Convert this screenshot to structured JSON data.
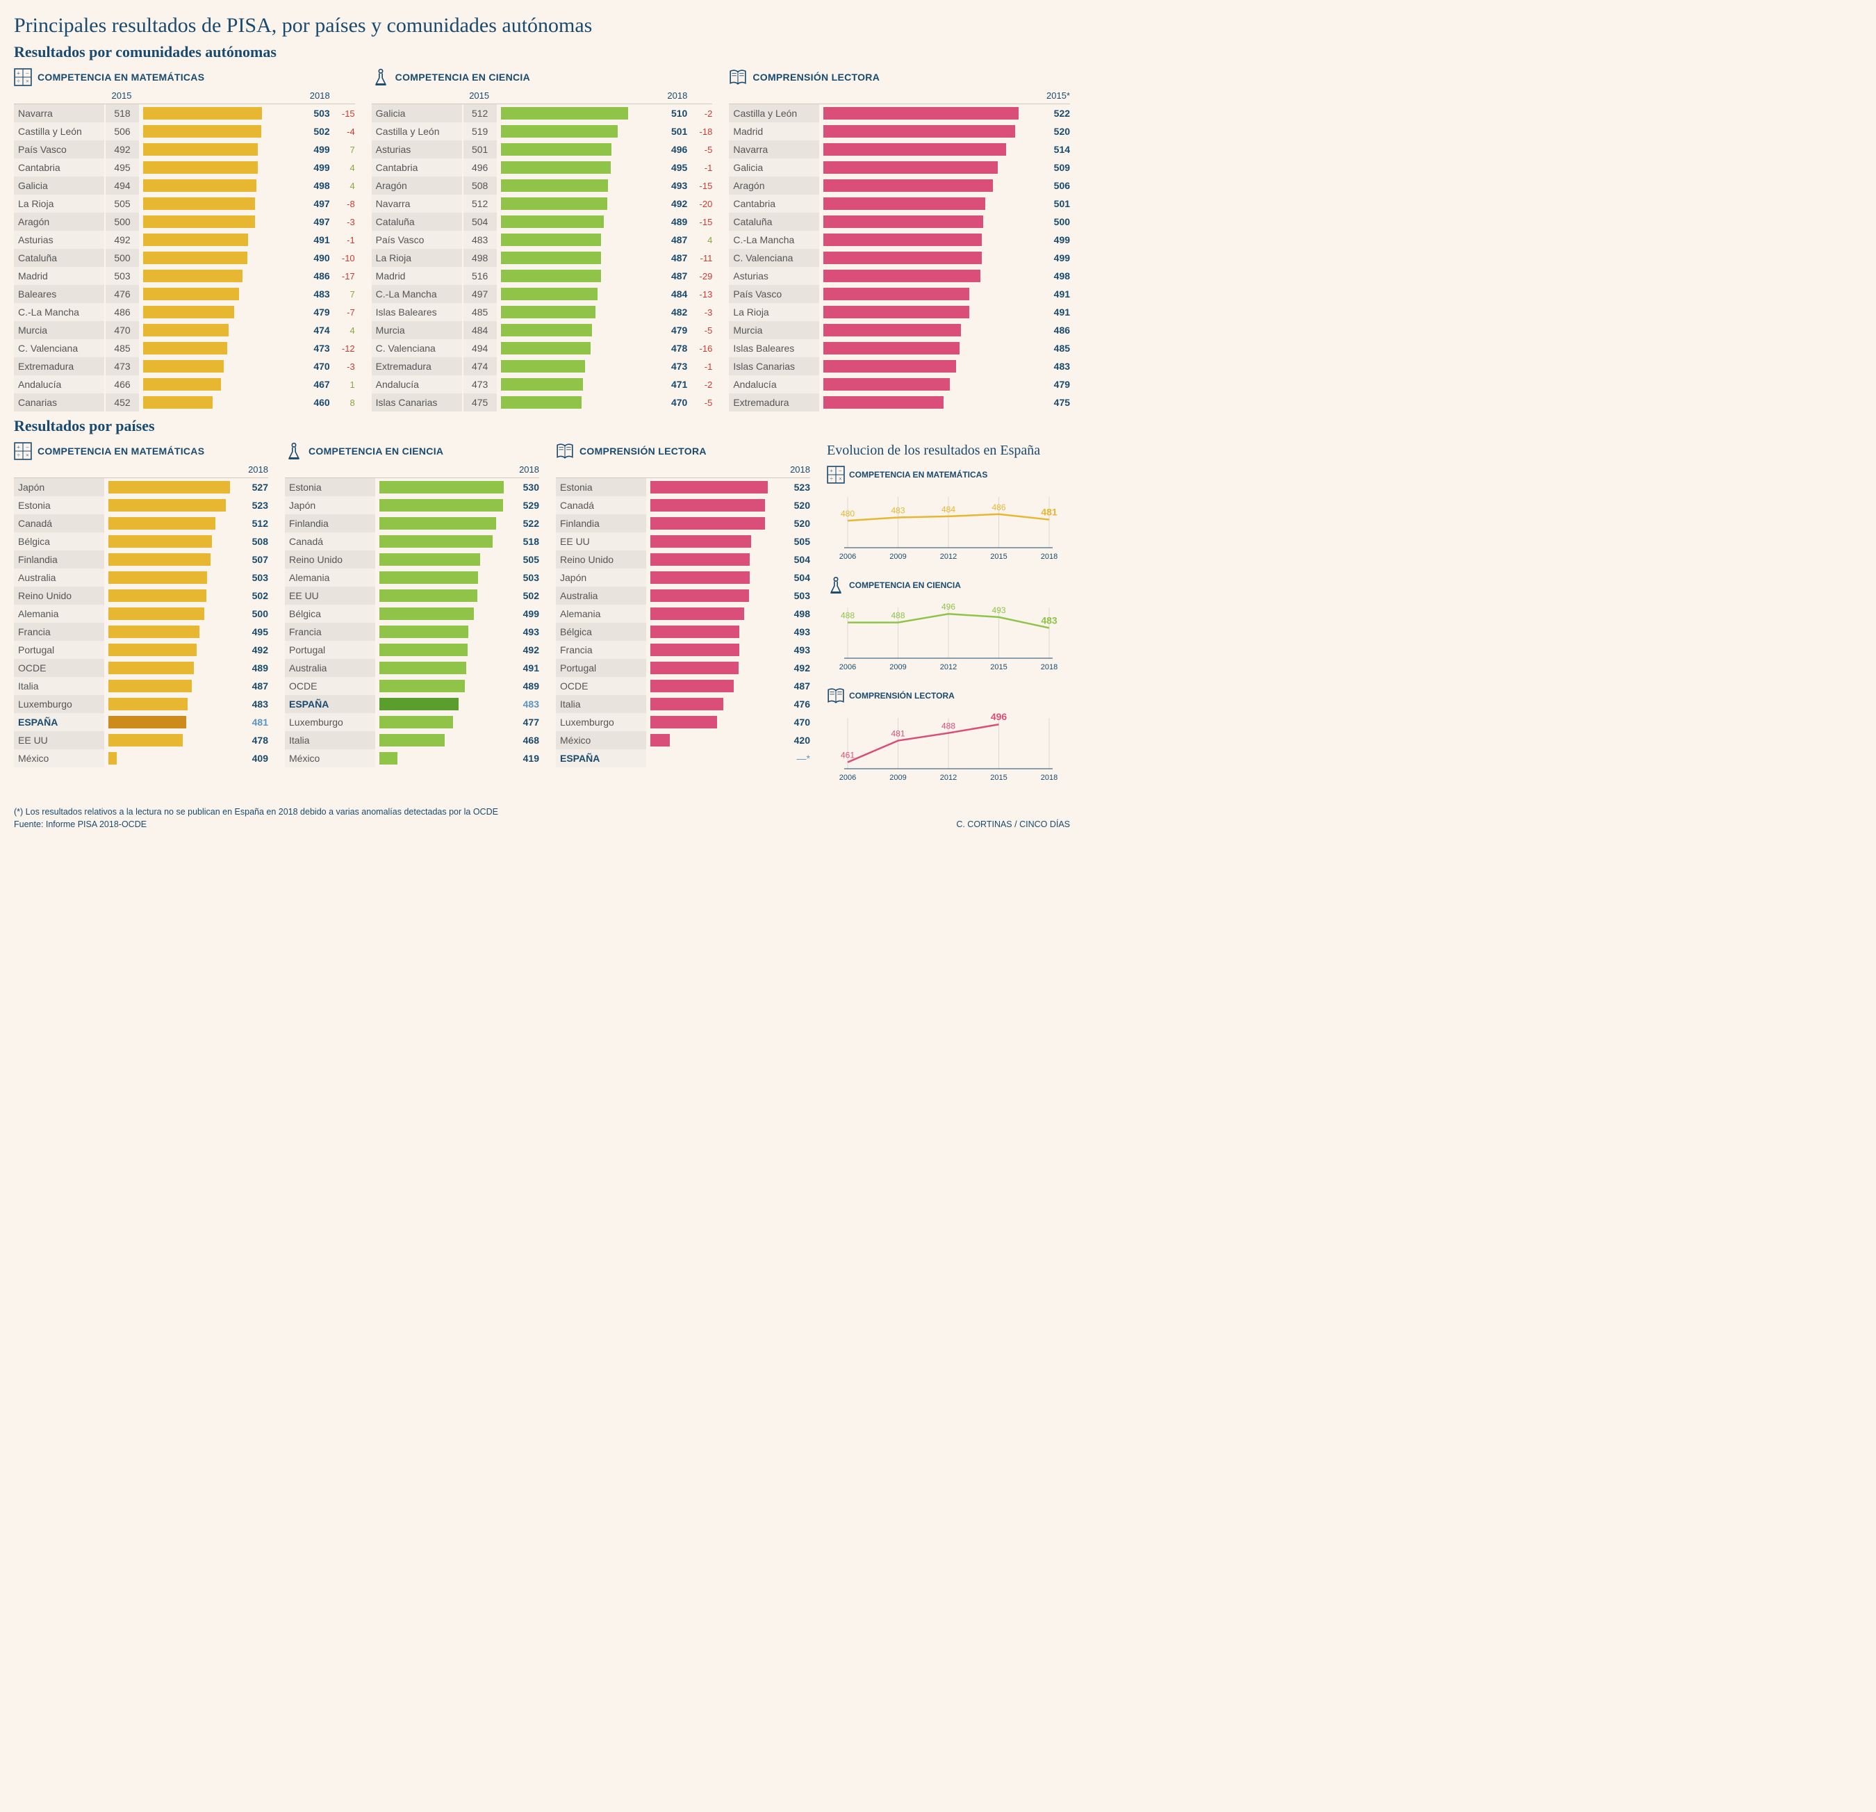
{
  "title": "Principales resultados de PISA, por países y comunidades autónomas",
  "subtitle_regions": "Resultados por comunidades autónomas",
  "subtitle_countries": "Resultados  por países",
  "col_2015": "2015",
  "col_2018": "2018",
  "col_2015star": "2015*",
  "footnote": "(*) Los resultados relativos a la lectura no se publican en España en 2018 debido a varias anomalías detectadas por la OCDE",
  "source": "Fuente: Informe PISA 2018-OCDE",
  "credit": "C. CORTINAS / CINCO DÍAS",
  "colors": {
    "math": "#e7b731",
    "math_dark": "#cc8b1a",
    "science": "#8fc449",
    "science_dark": "#5a9e2e",
    "reading": "#d94f7a",
    "neg": "#cf3b2e",
    "pos": "#8aa83c",
    "text": "#1a4a6e",
    "highlight_val": "#5a95c4"
  },
  "bar_domain": {
    "min": 400,
    "max": 535
  },
  "sections": {
    "math_title": "COMPETENCIA EN MATEMÁTICAS",
    "science_title": "COMPETENCIA EN CIENCIA",
    "reading_title": "COMPRENSIÓN LECTORA"
  },
  "regions_math": [
    {
      "name": "Navarra",
      "v2015": 518,
      "v2018": 503,
      "diff": -15
    },
    {
      "name": "Castilla y León",
      "v2015": 506,
      "v2018": 502,
      "diff": -4
    },
    {
      "name": "País Vasco",
      "v2015": 492,
      "v2018": 499,
      "diff": 7
    },
    {
      "name": "Cantabria",
      "v2015": 495,
      "v2018": 499,
      "diff": 4
    },
    {
      "name": "Galicia",
      "v2015": 494,
      "v2018": 498,
      "diff": 4
    },
    {
      "name": "La Rioja",
      "v2015": 505,
      "v2018": 497,
      "diff": -8
    },
    {
      "name": "Aragón",
      "v2015": 500,
      "v2018": 497,
      "diff": -3
    },
    {
      "name": "Asturias",
      "v2015": 492,
      "v2018": 491,
      "diff": -1
    },
    {
      "name": "Cataluña",
      "v2015": 500,
      "v2018": 490,
      "diff": -10
    },
    {
      "name": "Madrid",
      "v2015": 503,
      "v2018": 486,
      "diff": -17
    },
    {
      "name": "Baleares",
      "v2015": 476,
      "v2018": 483,
      "diff": 7
    },
    {
      "name": "C.-La Mancha",
      "v2015": 486,
      "v2018": 479,
      "diff": -7
    },
    {
      "name": "Murcia",
      "v2015": 470,
      "v2018": 474,
      "diff": 4
    },
    {
      "name": "C. Valenciana",
      "v2015": 485,
      "v2018": 473,
      "diff": -12
    },
    {
      "name": "Extremadura",
      "v2015": 473,
      "v2018": 470,
      "diff": -3
    },
    {
      "name": "Andalucía",
      "v2015": 466,
      "v2018": 467,
      "diff": 1
    },
    {
      "name": "Canarias",
      "v2015": 452,
      "v2018": 460,
      "diff": 8
    }
  ],
  "regions_science": [
    {
      "name": "Galicia",
      "v2015": 512,
      "v2018": 510,
      "diff": -2
    },
    {
      "name": "Castilla y León",
      "v2015": 519,
      "v2018": 501,
      "diff": -18
    },
    {
      "name": "Asturias",
      "v2015": 501,
      "v2018": 496,
      "diff": -5
    },
    {
      "name": "Cantabria",
      "v2015": 496,
      "v2018": 495,
      "diff": -1
    },
    {
      "name": "Aragón",
      "v2015": 508,
      "v2018": 493,
      "diff": -15
    },
    {
      "name": "Navarra",
      "v2015": 512,
      "v2018": 492,
      "diff": -20
    },
    {
      "name": "Cataluña",
      "v2015": 504,
      "v2018": 489,
      "diff": -15
    },
    {
      "name": "País Vasco",
      "v2015": 483,
      "v2018": 487,
      "diff": 4
    },
    {
      "name": "La Rioja",
      "v2015": 498,
      "v2018": 487,
      "diff": -11
    },
    {
      "name": "Madrid",
      "v2015": 516,
      "v2018": 487,
      "diff": -29
    },
    {
      "name": "C.-La Mancha",
      "v2015": 497,
      "v2018": 484,
      "diff": -13
    },
    {
      "name": "Islas Baleares",
      "v2015": 485,
      "v2018": 482,
      "diff": -3
    },
    {
      "name": "Murcia",
      "v2015": 484,
      "v2018": 479,
      "diff": -5
    },
    {
      "name": "C. Valenciana",
      "v2015": 494,
      "v2018": 478,
      "diff": -16
    },
    {
      "name": "Extremadura",
      "v2015": 474,
      "v2018": 473,
      "diff": -1
    },
    {
      "name": "Andalucía",
      "v2015": 473,
      "v2018": 471,
      "diff": -2
    },
    {
      "name": "Islas Canarias",
      "v2015": 475,
      "v2018": 470,
      "diff": -5
    }
  ],
  "regions_reading": [
    {
      "name": "Castilla y León",
      "v2018": 522
    },
    {
      "name": "Madrid",
      "v2018": 520
    },
    {
      "name": "Navarra",
      "v2018": 514
    },
    {
      "name": "Galicia",
      "v2018": 509
    },
    {
      "name": "Aragón",
      "v2018": 506
    },
    {
      "name": "Cantabria",
      "v2018": 501
    },
    {
      "name": "Cataluña",
      "v2018": 500
    },
    {
      "name": "C.-La Mancha",
      "v2018": 499
    },
    {
      "name": "C. Valenciana",
      "v2018": 499
    },
    {
      "name": "Asturias",
      "v2018": 498
    },
    {
      "name": "País Vasco",
      "v2018": 491
    },
    {
      "name": "La Rioja",
      "v2018": 491
    },
    {
      "name": "Murcia",
      "v2018": 486
    },
    {
      "name": "Islas Baleares",
      "v2018": 485
    },
    {
      "name": "Islas Canarias",
      "v2018": 483
    },
    {
      "name": "Andalucía",
      "v2018": 479
    },
    {
      "name": "Extremadura",
      "v2018": 475
    }
  ],
  "countries_math": [
    {
      "name": "Japón",
      "v2018": 527
    },
    {
      "name": "Estonia",
      "v2018": 523
    },
    {
      "name": "Canadá",
      "v2018": 512
    },
    {
      "name": "Bélgica",
      "v2018": 508
    },
    {
      "name": "Finlandia",
      "v2018": 507
    },
    {
      "name": "Australia",
      "v2018": 503
    },
    {
      "name": "Reino Unido",
      "v2018": 502
    },
    {
      "name": "Alemania",
      "v2018": 500
    },
    {
      "name": "Francia",
      "v2018": 495
    },
    {
      "name": "Portugal",
      "v2018": 492
    },
    {
      "name": "OCDE",
      "v2018": 489
    },
    {
      "name": "Italia",
      "v2018": 487
    },
    {
      "name": "Luxemburgo",
      "v2018": 483
    },
    {
      "name": "ESPAÑA",
      "v2018": 481,
      "highlight": true
    },
    {
      "name": "EE UU",
      "v2018": 478
    },
    {
      "name": "México",
      "v2018": 409
    }
  ],
  "countries_science": [
    {
      "name": "Estonia",
      "v2018": 530
    },
    {
      "name": "Japón",
      "v2018": 529
    },
    {
      "name": "Finlandia",
      "v2018": 522
    },
    {
      "name": "Canadá",
      "v2018": 518
    },
    {
      "name": "Reino Unido",
      "v2018": 505
    },
    {
      "name": "Alemania",
      "v2018": 503
    },
    {
      "name": "EE UU",
      "v2018": 502
    },
    {
      "name": "Bélgica",
      "v2018": 499
    },
    {
      "name": "Francia",
      "v2018": 493
    },
    {
      "name": "Portugal",
      "v2018": 492
    },
    {
      "name": "Australia",
      "v2018": 491
    },
    {
      "name": "OCDE",
      "v2018": 489
    },
    {
      "name": "ESPAÑA",
      "v2018": 483,
      "highlight": true
    },
    {
      "name": "Luxemburgo",
      "v2018": 477
    },
    {
      "name": "Italia",
      "v2018": 468
    },
    {
      "name": "México",
      "v2018": 419
    }
  ],
  "countries_reading": [
    {
      "name": "Estonia",
      "v2018": 523
    },
    {
      "name": "Canadá",
      "v2018": 520
    },
    {
      "name": "Finlandia",
      "v2018": 520
    },
    {
      "name": "EE UU",
      "v2018": 505
    },
    {
      "name": "Reino Unido",
      "v2018": 504
    },
    {
      "name": "Japón",
      "v2018": 504
    },
    {
      "name": "Australia",
      "v2018": 503
    },
    {
      "name": "Alemania",
      "v2018": 498
    },
    {
      "name": "Bélgica",
      "v2018": 493
    },
    {
      "name": "Francia",
      "v2018": 493
    },
    {
      "name": "Portugal",
      "v2018": 492
    },
    {
      "name": "OCDE",
      "v2018": 487
    },
    {
      "name": "Italia",
      "v2018": 476
    },
    {
      "name": "Luxemburgo",
      "v2018": 470
    },
    {
      "name": "México",
      "v2018": 420
    },
    {
      "name": "ESPAÑA",
      "v2018": null,
      "display": "—*",
      "highlight": true
    }
  ],
  "evolution": {
    "title": "Evolucion de los resultados en España",
    "years": [
      2006,
      2009,
      2012,
      2015,
      2018
    ],
    "math": {
      "values": [
        480,
        483,
        484,
        486,
        481
      ],
      "color": "#e7b731"
    },
    "science": {
      "values": [
        488,
        488,
        496,
        493,
        483
      ],
      "color": "#8fc449"
    },
    "reading": {
      "values": [
        461,
        481,
        488,
        496,
        null
      ],
      "color": "#d94f7a"
    },
    "y_domain": {
      "min": 455,
      "max": 500
    }
  }
}
